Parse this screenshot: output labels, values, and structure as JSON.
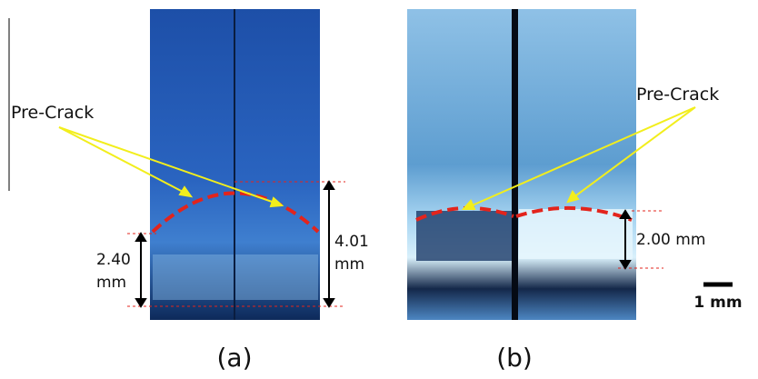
{
  "panels": [
    {
      "label": "(a)",
      "annotation": "Pre-Crack",
      "measurements": [
        {
          "number": "2.40",
          "unit": "mm"
        },
        {
          "number": "4.01",
          "unit": "mm"
        }
      ]
    },
    {
      "label": "(b)",
      "annotation": "Pre-Crack",
      "measurements": [
        {
          "text": "2.00 mm"
        }
      ]
    }
  ],
  "scale_bar": "1 mm"
}
